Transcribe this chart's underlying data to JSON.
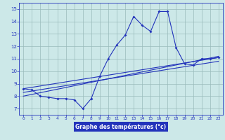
{
  "xlabel": "Graphe des températures (°c)",
  "x_ticks": [
    0,
    1,
    2,
    3,
    4,
    5,
    6,
    7,
    8,
    9,
    10,
    11,
    12,
    13,
    14,
    15,
    16,
    17,
    18,
    19,
    20,
    21,
    22,
    23
  ],
  "y_ticks": [
    7,
    8,
    9,
    10,
    11,
    12,
    13,
    14,
    15
  ],
  "ylim": [
    6.5,
    15.5
  ],
  "xlim": [
    -0.5,
    23.5
  ],
  "main_line_x": [
    0,
    1,
    2,
    3,
    4,
    5,
    6,
    7,
    8,
    9,
    10,
    11,
    12,
    13,
    14,
    15,
    16,
    17,
    18,
    19,
    20,
    21,
    22,
    23
  ],
  "main_line_y": [
    8.6,
    8.5,
    8.0,
    7.9,
    7.8,
    7.8,
    7.7,
    7.0,
    7.8,
    9.6,
    11.0,
    12.1,
    12.9,
    14.4,
    13.7,
    13.2,
    14.8,
    14.8,
    11.9,
    10.6,
    10.5,
    11.0,
    11.0,
    11.1
  ],
  "trend1_x": [
    0,
    23
  ],
  "trend1_y": [
    8.6,
    11.1
  ],
  "trend2_x": [
    0,
    23
  ],
  "trend2_y": [
    8.3,
    10.8
  ],
  "trend3_x": [
    0,
    23
  ],
  "trend3_y": [
    8.0,
    11.2
  ],
  "line_color": "#2233bb",
  "bg_color": "#cce8e8",
  "xlabel_bg": "#2233bb",
  "xlabel_fg": "#ffffff",
  "grid_color": "#99bbbb"
}
